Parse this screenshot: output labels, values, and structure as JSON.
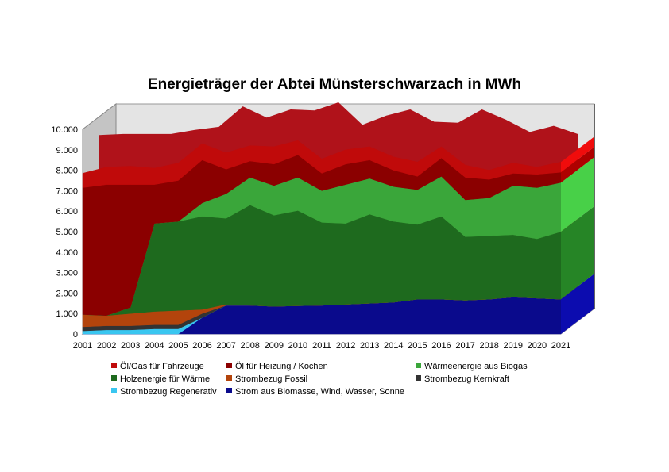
{
  "chart_data": {
    "type": "area",
    "stacked": true,
    "three_d": true,
    "title": "Energieträger der Abtei Münsterschwarzach in MWh",
    "categories": [
      "2001",
      "2002",
      "2003",
      "2004",
      "2005",
      "2006",
      "2007",
      "2008",
      "2009",
      "2010",
      "2011",
      "2012",
      "2013",
      "2014",
      "2015",
      "2016",
      "2017",
      "2018",
      "2019",
      "2020",
      "2021"
    ],
    "y_ticks": [
      "0",
      "1.000",
      "2.000",
      "3.000",
      "4.000",
      "5.000",
      "6.000",
      "7.000",
      "8.000",
      "9.000",
      "10.000"
    ],
    "ylim": [
      0,
      10000
    ],
    "grid": false,
    "legend_position": "bottom",
    "series": [
      {
        "name": "Strom aus Biomasse, Wind, Wasser, Sonne",
        "color": "#0a0a8c",
        "values": [
          0,
          0,
          0,
          0,
          0,
          800,
          1400,
          1400,
          1350,
          1380,
          1400,
          1450,
          1500,
          1550,
          1700,
          1700,
          1650,
          1700,
          1800,
          1750,
          1700
        ]
      },
      {
        "name": "Strombezug Regenerativ",
        "color": "#39c6f0",
        "values": [
          150,
          200,
          200,
          250,
          250,
          0,
          0,
          0,
          0,
          0,
          0,
          0,
          0,
          0,
          0,
          0,
          0,
          0,
          0,
          0,
          0
        ]
      },
      {
        "name": "Strombezug Kernkraft",
        "color": "#333333",
        "values": [
          200,
          200,
          200,
          200,
          200,
          200,
          0,
          0,
          0,
          0,
          0,
          0,
          0,
          0,
          0,
          0,
          0,
          0,
          0,
          0,
          0
        ]
      },
      {
        "name": "Strombezug Fossil",
        "color": "#b3440c",
        "values": [
          600,
          500,
          600,
          650,
          700,
          200,
          50,
          0,
          0,
          0,
          0,
          0,
          0,
          0,
          0,
          0,
          0,
          0,
          0,
          0,
          0
        ]
      },
      {
        "name": "Holzenergie für Wärme",
        "color": "#1e6a1e",
        "values": [
          0,
          0,
          300,
          4300,
          4350,
          4550,
          4200,
          4900,
          4450,
          4650,
          4050,
          3950,
          4350,
          3950,
          3650,
          4050,
          3100,
          3100,
          3050,
          2900,
          3300
        ]
      },
      {
        "name": "Wärmeenergie aus Biogas",
        "color": "#3aa63a",
        "values": [
          0,
          0,
          0,
          0,
          0,
          650,
          1200,
          1350,
          1450,
          1620,
          1550,
          1900,
          1750,
          1700,
          1700,
          1950,
          1800,
          1850,
          2400,
          2500,
          2400
        ]
      },
      {
        "name": "Öl für Heizung / Kochen",
        "color": "#8b0000",
        "values": [
          6200,
          6400,
          6000,
          1900,
          2000,
          2100,
          1200,
          800,
          1050,
          1100,
          850,
          1000,
          900,
          800,
          650,
          900,
          1100,
          900,
          600,
          650,
          500
        ]
      },
      {
        "name": "Öl/Gas  für Fahrzeuge",
        "color": "#c00a0a",
        "values": [
          700,
          850,
          900,
          800,
          850,
          800,
          800,
          750,
          850,
          700,
          700,
          700,
          650,
          650,
          700,
          550,
          600,
          450,
          500,
          350,
          500
        ]
      }
    ],
    "background_series_values": [
      9100,
      9150,
      9150,
      9150,
      9350,
      9500,
      10500,
      9950,
      10350,
      10300,
      10700,
      9600,
      10050,
      10350,
      9750,
      9700,
      10350,
      9850,
      9250,
      9550,
      9150
    ]
  },
  "legend_rows": [
    [
      "Öl/Gas  für Fahrzeuge",
      "Öl für Heizung / Kochen",
      "Wärmeenergie aus Biogas"
    ],
    [
      "Holzenergie für Wärme",
      "Strombezug Fossil",
      "Strombezug Kernkraft"
    ],
    [
      "Strombezug Regenerativ",
      "Strom aus Biomasse, Wind, Wasser, Sonne"
    ]
  ]
}
